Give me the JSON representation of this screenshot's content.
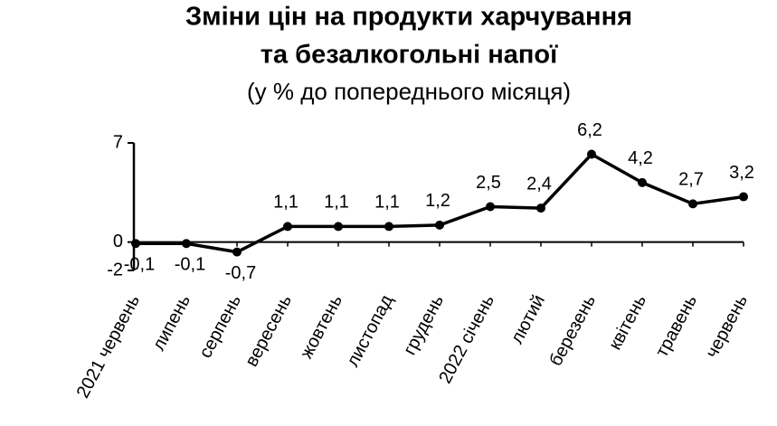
{
  "chart_data": {
    "type": "line",
    "title": [
      "Зміни цін на продукти харчування",
      "та безалкогольні напої"
    ],
    "subtitle": "(у % до попереднього місяця)",
    "categories": [
      "2021 червень",
      "липень",
      "серпень",
      "вересень",
      "жовтень",
      "листопад",
      "грудень",
      "2022 січень",
      "лютий",
      "березень",
      "квітень",
      "травень",
      "червень"
    ],
    "values": [
      -0.1,
      -0.1,
      -0.7,
      1.1,
      1.1,
      1.1,
      1.2,
      2.5,
      2.4,
      6.2,
      4.2,
      2.7,
      3.2
    ],
    "value_labels": [
      "-0,1",
      "-0,1",
      "-0,7",
      "1,1",
      "1,1",
      "1,1",
      "1,2",
      "2,5",
      "2,4",
      "6,2",
      "4,2",
      "2,7",
      "3,2"
    ],
    "color": "#000000",
    "ylim": [
      -2,
      7
    ],
    "yticks": [
      -2,
      0,
      7
    ]
  }
}
